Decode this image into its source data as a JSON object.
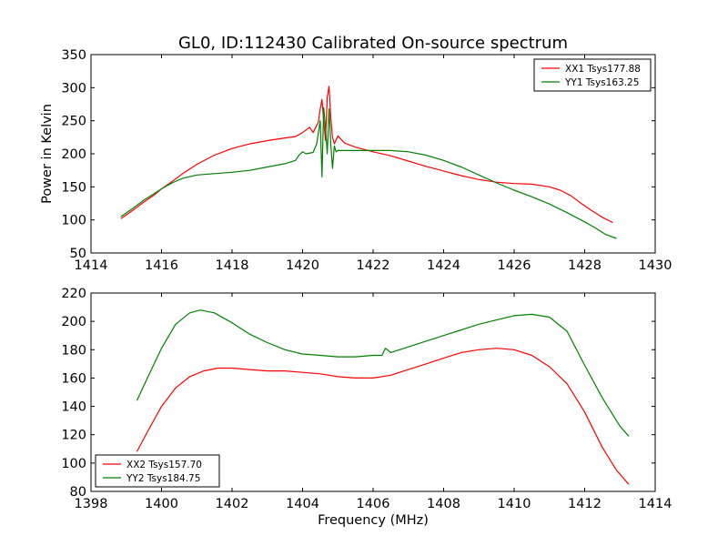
{
  "figure": {
    "title": "GL0, ID:112430 Calibrated On-source spectrum"
  },
  "chart_data": [
    {
      "type": "line",
      "title": "GL0, ID:112430 Calibrated On-source spectrum",
      "xlabel": "",
      "ylabel": "Power in Kelvin",
      "xlim": [
        1414,
        1430
      ],
      "ylim": [
        50,
        350
      ],
      "xticks": [
        1414,
        1416,
        1418,
        1420,
        1422,
        1424,
        1426,
        1428,
        1430
      ],
      "yticks": [
        50,
        100,
        150,
        200,
        250,
        300,
        350
      ],
      "grid": false,
      "legend_position": "top-right",
      "series": [
        {
          "name": "XX1 Tsys177.88",
          "color": "#ff0000",
          "x": [
            1414.85,
            1415.2,
            1415.5,
            1415.8,
            1416.0,
            1416.3,
            1416.6,
            1417.0,
            1417.5,
            1418.0,
            1418.5,
            1419.0,
            1419.5,
            1419.8,
            1420.0,
            1420.2,
            1420.3,
            1420.45,
            1420.5,
            1420.55,
            1420.6,
            1420.65,
            1420.7,
            1420.75,
            1420.8,
            1420.85,
            1420.9,
            1421.0,
            1421.2,
            1421.5,
            1422.0,
            1422.5,
            1423.0,
            1423.5,
            1424.0,
            1424.5,
            1425.0,
            1425.5,
            1426.0,
            1426.5,
            1427.0,
            1427.3,
            1427.6,
            1427.9,
            1428.2,
            1428.5,
            1428.8
          ],
          "y": [
            102,
            115,
            127,
            138,
            147,
            158,
            170,
            184,
            198,
            208,
            215,
            220,
            224,
            226,
            232,
            240,
            232,
            248,
            268,
            282,
            250,
            220,
            285,
            302,
            255,
            225,
            215,
            227,
            216,
            210,
            203,
            197,
            189,
            181,
            174,
            167,
            161,
            157,
            155,
            154,
            150,
            145,
            137,
            125,
            114,
            104,
            96
          ]
        },
        {
          "name": "YY1 Tsys163.25",
          "color": "#008000",
          "x": [
            1414.85,
            1415.2,
            1415.5,
            1415.8,
            1416.0,
            1416.3,
            1416.6,
            1417.0,
            1417.5,
            1418.0,
            1418.5,
            1419.0,
            1419.5,
            1419.8,
            1419.9,
            1420.0,
            1420.1,
            1420.3,
            1420.4,
            1420.5,
            1420.55,
            1420.6,
            1420.65,
            1420.7,
            1420.75,
            1420.8,
            1420.85,
            1420.9,
            1420.95,
            1421.0,
            1421.5,
            1422.0,
            1422.5,
            1423.0,
            1423.5,
            1424.0,
            1424.5,
            1425.0,
            1425.5,
            1426.0,
            1426.5,
            1427.0,
            1427.5,
            1428.0,
            1428.3,
            1428.6,
            1428.9
          ],
          "y": [
            105,
            118,
            130,
            140,
            147,
            156,
            163,
            168,
            170,
            172,
            175,
            180,
            185,
            190,
            198,
            203,
            200,
            202,
            215,
            250,
            165,
            270,
            240,
            200,
            268,
            215,
            178,
            212,
            203,
            205,
            205,
            205,
            205,
            203,
            198,
            190,
            180,
            168,
            156,
            145,
            135,
            124,
            111,
            97,
            88,
            78,
            72
          ]
        }
      ]
    },
    {
      "type": "line",
      "title": "",
      "xlabel": "Frequency (MHz)",
      "ylabel": "",
      "xlim": [
        1398,
        1414
      ],
      "ylim": [
        80,
        220
      ],
      "xticks": [
        1398,
        1400,
        1402,
        1404,
        1406,
        1408,
        1410,
        1412,
        1414
      ],
      "yticks": [
        80,
        100,
        120,
        140,
        160,
        180,
        200,
        220
      ],
      "grid": false,
      "legend_position": "bottom-left",
      "series": [
        {
          "name": "XX2 Tsys157.70",
          "color": "#ff0000",
          "x": [
            1399.3,
            1399.6,
            1400.0,
            1400.4,
            1400.8,
            1401.2,
            1401.6,
            1402.0,
            1402.5,
            1403.0,
            1403.5,
            1404.0,
            1404.5,
            1405.0,
            1405.5,
            1406.0,
            1406.5,
            1407.0,
            1407.5,
            1408.0,
            1408.5,
            1409.0,
            1409.5,
            1410.0,
            1410.5,
            1411.0,
            1411.5,
            1412.0,
            1412.5,
            1412.9,
            1413.25
          ],
          "y": [
            108,
            122,
            140,
            153,
            161,
            165,
            167,
            167,
            166,
            165,
            165,
            164,
            163,
            161,
            160,
            160,
            162,
            166,
            170,
            174,
            178,
            180,
            181,
            180,
            176,
            168,
            156,
            136,
            111,
            95,
            85
          ]
        },
        {
          "name": "YY2 Tsys184.75",
          "color": "#008000",
          "x": [
            1399.3,
            1399.6,
            1400.0,
            1400.4,
            1400.8,
            1401.1,
            1401.5,
            1402.0,
            1402.5,
            1403.0,
            1403.5,
            1404.0,
            1404.5,
            1405.0,
            1405.5,
            1406.0,
            1406.25,
            1406.35,
            1406.5,
            1407.0,
            1407.5,
            1408.0,
            1408.5,
            1409.0,
            1409.5,
            1410.0,
            1410.5,
            1411.0,
            1411.5,
            1412.0,
            1412.5,
            1413.0,
            1413.25
          ],
          "y": [
            144,
            160,
            181,
            198,
            206,
            208,
            206,
            199,
            191,
            185,
            180,
            177,
            176,
            175,
            175,
            176,
            176,
            181,
            178,
            182,
            186,
            190,
            194,
            198,
            201,
            204,
            205,
            203,
            193,
            169,
            146,
            126,
            119
          ]
        }
      ]
    }
  ]
}
